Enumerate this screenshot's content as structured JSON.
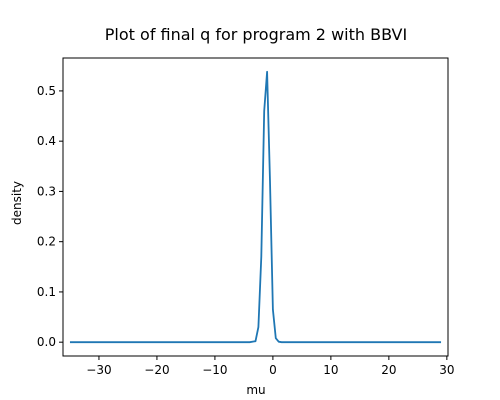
{
  "chart_data": {
    "type": "line",
    "title": "Plot of final q for program 2 with BBVI",
    "xlabel": "mu",
    "ylabel": "density",
    "xlim": [
      -36.2,
      30.2
    ],
    "ylim": [
      -0.0275,
      0.5655
    ],
    "xticks": [
      -30,
      -20,
      -10,
      0,
      10,
      20,
      30
    ],
    "yticks": [
      0.0,
      0.1,
      0.2,
      0.3,
      0.4,
      0.5
    ],
    "xtick_labels": [
      "−30",
      "−20",
      "−10",
      "0",
      "10",
      "20",
      "30"
    ],
    "ytick_labels": [
      "0.0",
      "0.1",
      "0.2",
      "0.3",
      "0.4",
      "0.5"
    ],
    "grid": false,
    "series": [
      {
        "color": "#1f77b4",
        "x": [
          -35,
          -4,
          -3,
          -2.5,
          -2,
          -1.5,
          -1,
          -0.5,
          0,
          0.5,
          1,
          1.5,
          2,
          3,
          29
        ],
        "y": [
          0.0,
          0.0,
          0.002,
          0.03,
          0.17,
          0.46,
          0.538,
          0.32,
          0.065,
          0.008,
          0.001,
          0.0,
          0.0,
          0.0,
          0.0
        ]
      }
    ]
  }
}
